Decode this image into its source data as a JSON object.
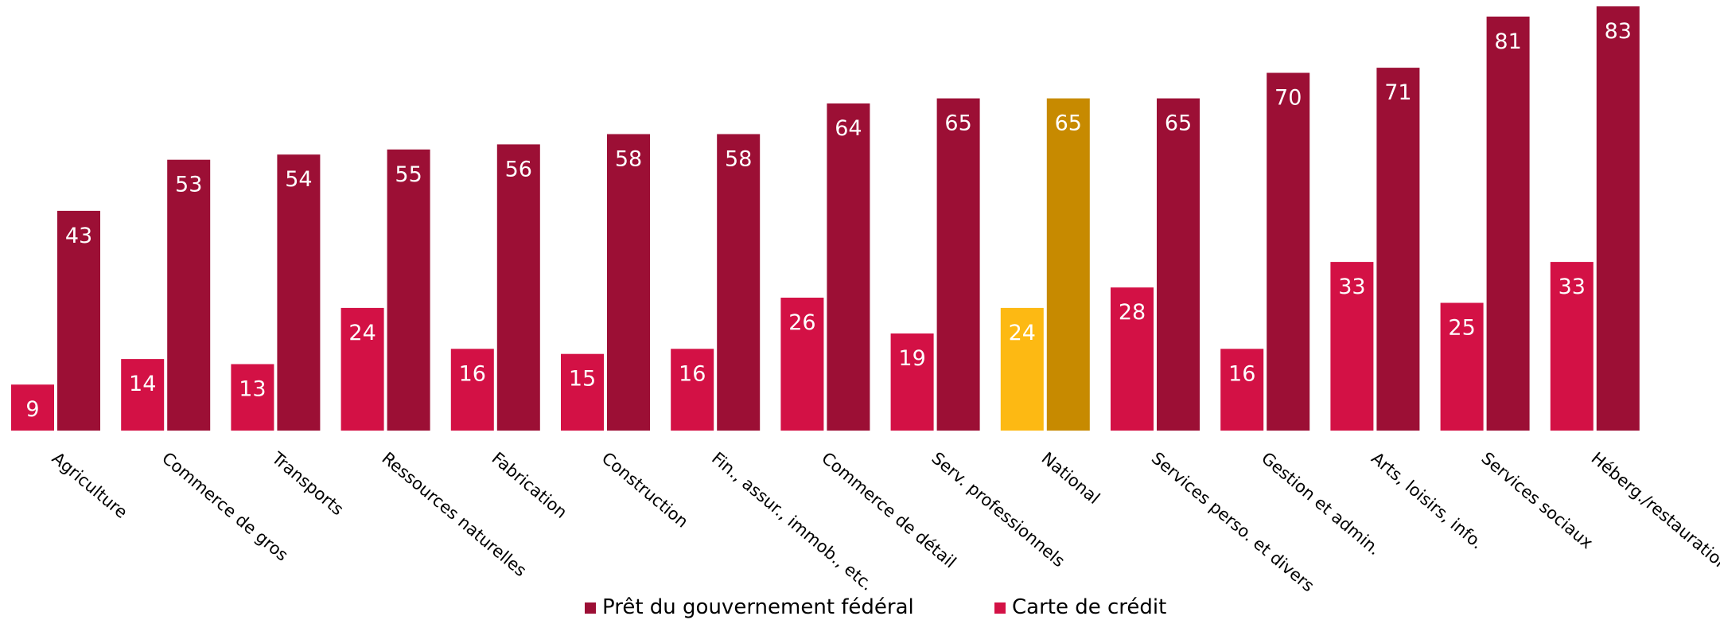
{
  "chart_data": {
    "type": "bar",
    "title": "",
    "xlabel": "",
    "ylabel": "",
    "ylim": [
      0,
      83
    ],
    "grid": false,
    "legend_position": "bottom",
    "categories": [
      "Agriculture",
      "Commerce de gros",
      "Transports",
      "Ressources naturelles",
      "Fabrication",
      "Construction",
      "Fin., assur., immob., etc.",
      "Commerce de détail",
      "Serv. professionnels",
      "National",
      "Services perso. et divers",
      "Gestion et admin.",
      "Arts, loisirs, info.",
      "Services sociaux",
      "Héberg./restauration"
    ],
    "highlight_category": "National",
    "series": [
      {
        "name": "Carte de crédit",
        "color": "#d31145",
        "highlight_color": "#fdb913",
        "values": [
          9,
          14,
          13,
          24,
          16,
          15,
          16,
          26,
          19,
          24,
          28,
          16,
          33,
          25,
          33
        ]
      },
      {
        "name": "Prêt du gouvernement fédéral",
        "color": "#9c0f35",
        "highlight_color": "#c78a00",
        "values": [
          43,
          53,
          54,
          55,
          56,
          58,
          58,
          64,
          65,
          65,
          65,
          70,
          71,
          81,
          83
        ]
      }
    ]
  },
  "legend": {
    "items": [
      {
        "label": "Prêt du gouvernement fédéral",
        "color": "#9c0f35"
      },
      {
        "label": "Carte de crédit",
        "color": "#d31145"
      }
    ]
  }
}
